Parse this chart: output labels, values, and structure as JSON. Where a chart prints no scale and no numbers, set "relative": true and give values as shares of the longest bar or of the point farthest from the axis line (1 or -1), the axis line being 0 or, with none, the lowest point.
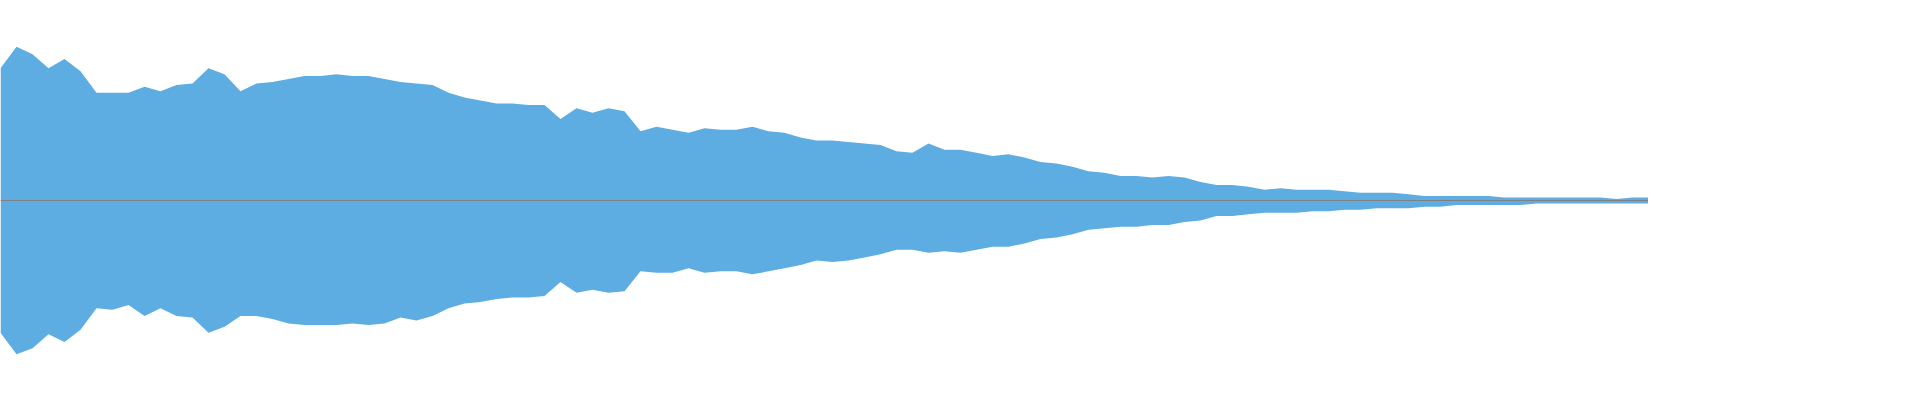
{
  "chart_data": {
    "type": "area",
    "relative": true,
    "categories": [
      null,
      null,
      null,
      null,
      null,
      null,
      null,
      null,
      null,
      null,
      null,
      null,
      null,
      null,
      null,
      null,
      null,
      null,
      null,
      null,
      null,
      null,
      null,
      null,
      null,
      null,
      null,
      null,
      null,
      null,
      null,
      null,
      null,
      null,
      null,
      null,
      null,
      null,
      null,
      null,
      null,
      null,
      null,
      null,
      null,
      null,
      null,
      null,
      null,
      null,
      null,
      null,
      null,
      null,
      null,
      null,
      null,
      null,
      null,
      null,
      null,
      null,
      null,
      null,
      null,
      null,
      null,
      null,
      null,
      null,
      null,
      null,
      null,
      null,
      null,
      null,
      null,
      null,
      null,
      null,
      null,
      null,
      null,
      null,
      null,
      null,
      null,
      null,
      null,
      null,
      null,
      null,
      null,
      null,
      null,
      null,
      null,
      null,
      null,
      null,
      null,
      null,
      null,
      null
    ],
    "series": [
      {
        "color": "#5dade2",
        "values": [
          0.86,
          1.0,
          0.95,
          0.86,
          0.92,
          0.84,
          0.7,
          0.7,
          0.7,
          0.74,
          0.71,
          0.75,
          0.76,
          0.86,
          0.82,
          0.71,
          0.76,
          0.77,
          0.79,
          0.81,
          0.81,
          0.82,
          0.81,
          0.81,
          0.79,
          0.77,
          0.76,
          0.75,
          0.7,
          0.67,
          0.65,
          0.63,
          0.63,
          0.62,
          0.62,
          0.53,
          0.6,
          0.57,
          0.6,
          0.58,
          0.45,
          0.48,
          0.46,
          0.44,
          0.47,
          0.46,
          0.46,
          0.48,
          0.45,
          0.44,
          0.41,
          0.39,
          0.39,
          0.38,
          0.37,
          0.36,
          0.32,
          0.31,
          0.37,
          0.33,
          0.33,
          0.31,
          0.29,
          0.3,
          0.28,
          0.25,
          0.24,
          0.22,
          0.19,
          0.18,
          0.16,
          0.16,
          0.15,
          0.16,
          0.15,
          0.12,
          0.1,
          0.1,
          0.09,
          0.07,
          0.08,
          0.07,
          0.07,
          0.07,
          0.06,
          0.05,
          0.05,
          0.05,
          0.04,
          0.03,
          0.03,
          0.03,
          0.03,
          0.03,
          0.02,
          0.02,
          0.02,
          0.02,
          0.02,
          0.02,
          0.02,
          0.01,
          0.02,
          0.02
        ]
      },
      {
        "color": "#5dade2",
        "values": [
          -0.86,
          -1.0,
          -0.96,
          -0.87,
          -0.92,
          -0.84,
          -0.7,
          -0.71,
          -0.68,
          -0.75,
          -0.7,
          -0.75,
          -0.76,
          -0.86,
          -0.82,
          -0.75,
          -0.75,
          -0.77,
          -0.8,
          -0.81,
          -0.81,
          -0.81,
          -0.8,
          -0.81,
          -0.8,
          -0.76,
          -0.78,
          -0.75,
          -0.7,
          -0.67,
          -0.66,
          -0.64,
          -0.63,
          -0.63,
          -0.62,
          -0.53,
          -0.6,
          -0.58,
          -0.6,
          -0.59,
          -0.46,
          -0.47,
          -0.47,
          -0.44,
          -0.47,
          -0.46,
          -0.46,
          -0.48,
          -0.46,
          -0.44,
          -0.42,
          -0.39,
          -0.4,
          -0.39,
          -0.37,
          -0.35,
          -0.32,
          -0.32,
          -0.34,
          -0.33,
          -0.34,
          -0.32,
          -0.3,
          -0.3,
          -0.28,
          -0.25,
          -0.24,
          -0.22,
          -0.19,
          -0.18,
          -0.17,
          -0.17,
          -0.16,
          -0.16,
          -0.14,
          -0.13,
          -0.1,
          -0.1,
          -0.09,
          -0.08,
          -0.08,
          -0.08,
          -0.07,
          -0.07,
          -0.06,
          -0.06,
          -0.05,
          -0.05,
          -0.05,
          -0.04,
          -0.04,
          -0.03,
          -0.03,
          -0.03,
          -0.03,
          -0.03,
          -0.02,
          -0.02,
          -0.02,
          -0.02,
          -0.02,
          -0.02,
          -0.02,
          -0.02
        ]
      }
    ]
  }
}
